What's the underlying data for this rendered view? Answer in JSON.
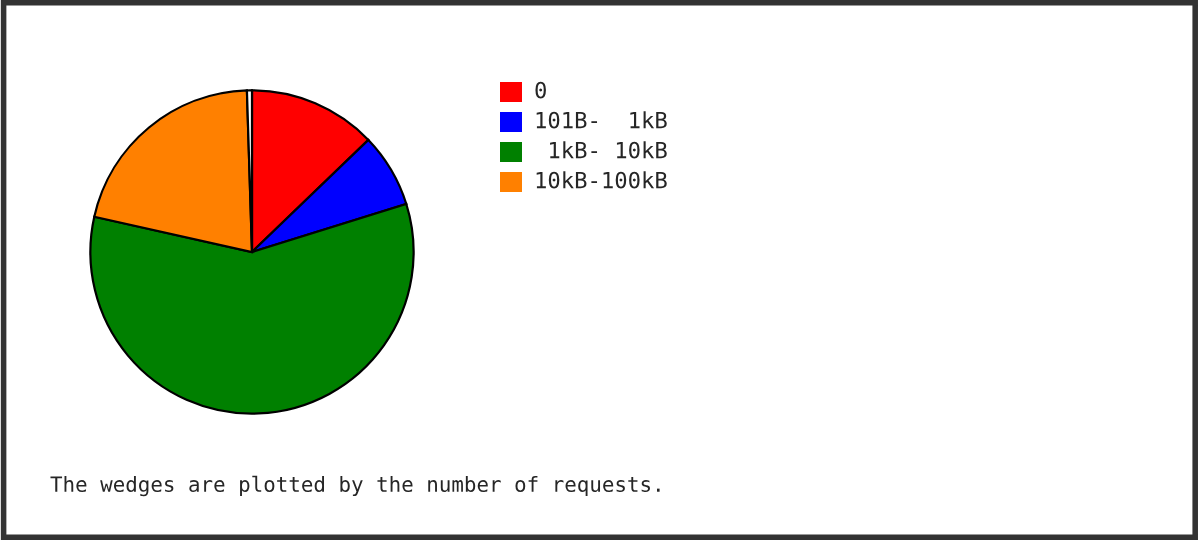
{
  "chart_data": {
    "type": "pie",
    "categories": [
      "0",
      "101B-  1kB",
      " 1kB- 10kB",
      "10kB-100kB",
      null
    ],
    "values": [
      12.8,
      7.4,
      58.3,
      21.0,
      0.5
    ],
    "colors": [
      "#ff0000",
      "#0000ff",
      "#008000",
      "#ff8000",
      "#ffffff"
    ],
    "legend": "right",
    "annotations": [
      "The wedges are plotted by the number of requests."
    ]
  }
}
